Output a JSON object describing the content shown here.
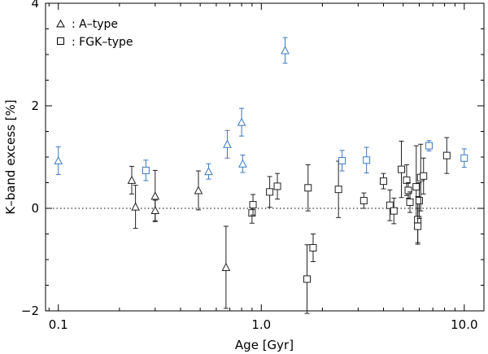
{
  "chart_data": {
    "type": "scatter",
    "xlabel": "Age [Gyr]",
    "ylabel": "K–band excess [%]",
    "x_scale": "log",
    "xlim": [
      0.0865,
      12.5
    ],
    "ylim": [
      -2.0,
      4.0
    ],
    "x_ticks": [
      {
        "value": 0.1,
        "label": "0.1"
      },
      {
        "value": 1.0,
        "label": "1.0"
      },
      {
        "value": 10.0,
        "label": "10.0"
      }
    ],
    "y_ticks": [
      {
        "value": -2,
        "label": "−2"
      },
      {
        "value": 0,
        "label": "0"
      },
      {
        "value": 2,
        "label": "2"
      },
      {
        "value": 4,
        "label": "4"
      }
    ],
    "reference_line": {
      "y": 0,
      "style": "dotted"
    },
    "legend": {
      "placement": "top-left",
      "entries": [
        {
          "marker": "triangle",
          "label": ": A–type"
        },
        {
          "marker": "square",
          "label": ": FGK–type"
        }
      ]
    },
    "colors": {
      "default": "#222222",
      "highlight": "#3a78c0"
    },
    "series": [
      {
        "name": "A–type",
        "marker": "triangle",
        "points": [
          {
            "x": 0.1,
            "y": 0.93,
            "err": 0.27,
            "highlight": true
          },
          {
            "x": 0.23,
            "y": 0.55,
            "err": 0.27,
            "highlight": false
          },
          {
            "x": 0.24,
            "y": 0.03,
            "err": 0.42,
            "highlight": false
          },
          {
            "x": 0.3,
            "y": 0.24,
            "err": 0.5,
            "highlight": false
          },
          {
            "x": 0.3,
            "y": -0.04,
            "err": 0.2,
            "highlight": false
          },
          {
            "x": 0.49,
            "y": 0.35,
            "err": 0.38,
            "highlight": false
          },
          {
            "x": 0.55,
            "y": 0.72,
            "err": 0.15,
            "highlight": true
          },
          {
            "x": 0.67,
            "y": -1.15,
            "err": 0.8,
            "highlight": false
          },
          {
            "x": 0.68,
            "y": 1.25,
            "err": 0.27,
            "highlight": true
          },
          {
            "x": 0.8,
            "y": 1.68,
            "err": 0.27,
            "highlight": true
          },
          {
            "x": 0.81,
            "y": 0.87,
            "err": 0.17,
            "highlight": true
          },
          {
            "x": 1.31,
            "y": 3.08,
            "err": 0.25,
            "highlight": true
          }
        ]
      },
      {
        "name": "FGK–type",
        "marker": "square",
        "points": [
          {
            "x": 0.27,
            "y": 0.74,
            "err": 0.2,
            "highlight": true
          },
          {
            "x": 0.9,
            "y": -0.09,
            "err": 0.2,
            "highlight": false
          },
          {
            "x": 0.91,
            "y": 0.07,
            "err": 0.2,
            "highlight": false
          },
          {
            "x": 1.1,
            "y": 0.32,
            "err": 0.3,
            "highlight": false
          },
          {
            "x": 1.2,
            "y": 0.43,
            "err": 0.25,
            "highlight": false
          },
          {
            "x": 1.68,
            "y": -1.38,
            "err": 0.67,
            "highlight": false
          },
          {
            "x": 1.7,
            "y": 0.4,
            "err": 0.45,
            "highlight": false
          },
          {
            "x": 1.8,
            "y": -0.77,
            "err": 0.27,
            "highlight": false
          },
          {
            "x": 2.4,
            "y": 0.37,
            "err": 0.55,
            "highlight": false
          },
          {
            "x": 2.5,
            "y": 0.93,
            "err": 0.2,
            "highlight": true
          },
          {
            "x": 3.2,
            "y": 0.15,
            "err": 0.15,
            "highlight": false
          },
          {
            "x": 3.3,
            "y": 0.94,
            "err": 0.25,
            "highlight": true
          },
          {
            "x": 4.0,
            "y": 0.53,
            "err": 0.15,
            "highlight": false
          },
          {
            "x": 4.3,
            "y": 0.06,
            "err": 0.3,
            "highlight": false
          },
          {
            "x": 4.5,
            "y": -0.05,
            "err": 0.25,
            "highlight": false
          },
          {
            "x": 4.9,
            "y": 0.76,
            "err": 0.55,
            "highlight": false
          },
          {
            "x": 5.2,
            "y": 0.55,
            "err": 0.3,
            "highlight": false
          },
          {
            "x": 5.3,
            "y": 0.35,
            "err": 0.15,
            "highlight": false
          },
          {
            "x": 5.4,
            "y": 0.12,
            "err": 0.2,
            "highlight": false
          },
          {
            "x": 5.8,
            "y": 0.42,
            "err": 0.8,
            "highlight": false
          },
          {
            "x": 5.9,
            "y": -0.22,
            "err": 0.45,
            "highlight": false
          },
          {
            "x": 5.9,
            "y": -0.35,
            "err": 0.35,
            "highlight": false
          },
          {
            "x": 6.0,
            "y": 0.15,
            "err": 0.35,
            "highlight": false
          },
          {
            "x": 6.1,
            "y": 0.6,
            "err": 0.65,
            "highlight": false
          },
          {
            "x": 6.3,
            "y": 0.63,
            "err": 0.35,
            "highlight": false
          },
          {
            "x": 6.7,
            "y": 1.22,
            "err": 0.1,
            "highlight": true
          },
          {
            "x": 8.2,
            "y": 1.03,
            "err": 0.35,
            "highlight": false
          },
          {
            "x": 10.0,
            "y": 0.98,
            "err": 0.18,
            "highlight": true
          }
        ]
      }
    ]
  }
}
